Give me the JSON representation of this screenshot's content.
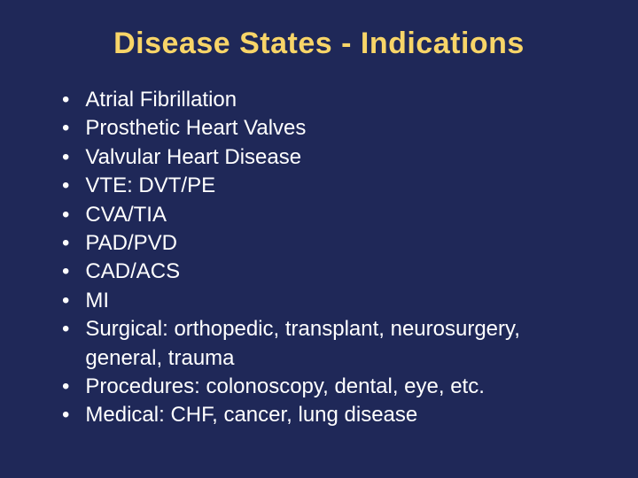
{
  "slide": {
    "title": "Disease States - Indications",
    "background_color": "#1f2858",
    "title_color": "#f8d568",
    "text_color": "#ffffff",
    "title_fontsize": 34,
    "body_fontsize": 24,
    "bullets": [
      "Atrial Fibrillation",
      "Prosthetic Heart Valves",
      "Valvular Heart Disease",
      "VTE: DVT/PE",
      "CVA/TIA",
      "PAD/PVD",
      "CAD/ACS",
      "MI",
      "Surgical: orthopedic, transplant, neurosurgery, general, trauma",
      "Procedures: colonoscopy, dental, eye, etc.",
      "Medical: CHF, cancer, lung disease"
    ]
  }
}
